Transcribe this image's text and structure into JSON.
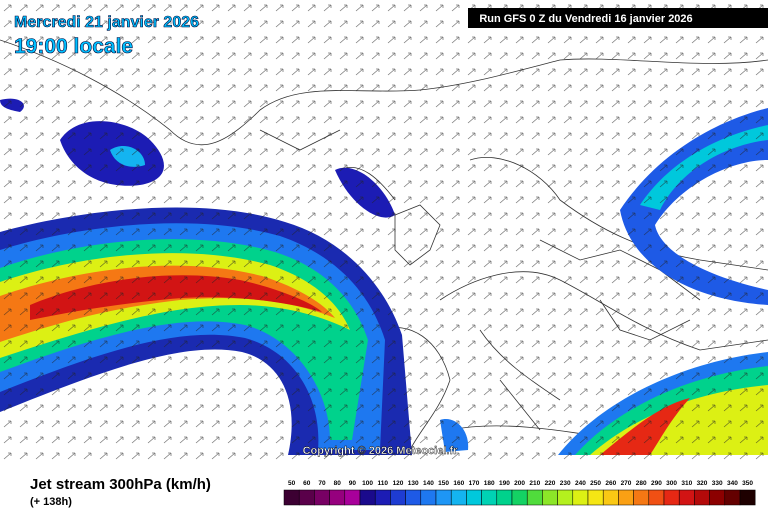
{
  "header": {
    "date": "Mercredi 21 janvier 2026",
    "time": "19:00 locale",
    "run": "Run GFS 0 Z du Vendredi 16 janvier 2026"
  },
  "copyright": "Copyright © 2026 Meteociel.fr",
  "footer": {
    "title": "Jet stream 300hPa (km/h)",
    "lead": "(+ 138h)"
  },
  "scale": {
    "values": [
      50,
      60,
      70,
      80,
      90,
      100,
      110,
      120,
      130,
      140,
      150,
      160,
      170,
      180,
      190,
      200,
      210,
      220,
      230,
      240,
      250,
      260,
      270,
      280,
      290,
      300,
      310,
      320,
      330,
      340,
      350
    ],
    "colors": [
      "#3c0032",
      "#5a004a",
      "#780064",
      "#96007e",
      "#a8009a",
      "#1a0a8c",
      "#1c1cb4",
      "#1e3cd2",
      "#1e5ae6",
      "#1e78f0",
      "#1e96f5",
      "#14b4f0",
      "#00c8dc",
      "#00d2b4",
      "#00d28c",
      "#14d264",
      "#50dc3c",
      "#8ce628",
      "#b4f01e",
      "#dcf014",
      "#f5e614",
      "#fac814",
      "#faa014",
      "#f57814",
      "#f05014",
      "#e62814",
      "#d21414",
      "#b40a0a",
      "#8c0000",
      "#640000",
      "#1e0000"
    ]
  }
}
